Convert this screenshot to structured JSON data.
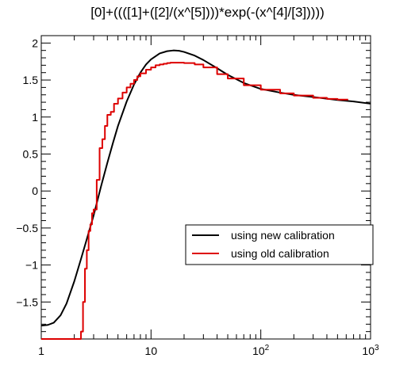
{
  "chart_data": {
    "type": "line",
    "title": "[0]+((([1]+([2]/(x^[5])))*exp(-(x^[4]/[3]))))",
    "xlabel": "",
    "ylabel": "",
    "xscale": "log",
    "xlim": [
      1,
      1000
    ],
    "ylim": [
      -2,
      2.1
    ],
    "grid": false,
    "legend_position": "lower-right",
    "x_ticks": [
      {
        "value": 1,
        "label": "1"
      },
      {
        "value": 10,
        "label": "10"
      },
      {
        "value": 100,
        "label": "10",
        "sup": "2"
      },
      {
        "value": 1000,
        "label": "10",
        "sup": "3"
      }
    ],
    "y_ticks": [
      {
        "value": -1.5,
        "label": "−1.5"
      },
      {
        "value": -1,
        "label": "−1"
      },
      {
        "value": -0.5,
        "label": "−0.5"
      },
      {
        "value": 0,
        "label": "0"
      },
      {
        "value": 0.5,
        "label": "0.5"
      },
      {
        "value": 1,
        "label": "1"
      },
      {
        "value": 1.5,
        "label": "1.5"
      },
      {
        "value": 2,
        "label": "2"
      }
    ],
    "series": [
      {
        "name": "using new calibration",
        "color": "#000000",
        "style": "smooth",
        "x": [
          1,
          1.15,
          1.3,
          1.5,
          1.7,
          2.0,
          2.3,
          2.6,
          3.0,
          3.5,
          4.0,
          4.5,
          5.0,
          6.0,
          7.0,
          8.0,
          9.0,
          10,
          12,
          14,
          16,
          18,
          20,
          25,
          30,
          40,
          50,
          70,
          100,
          150,
          200,
          300,
          500,
          700,
          1000
        ],
        "y": [
          -1.82,
          -1.81,
          -1.78,
          -1.68,
          -1.52,
          -1.22,
          -0.92,
          -0.65,
          -0.33,
          0.06,
          0.38,
          0.65,
          0.88,
          1.21,
          1.44,
          1.6,
          1.71,
          1.78,
          1.86,
          1.89,
          1.9,
          1.895,
          1.88,
          1.83,
          1.77,
          1.66,
          1.57,
          1.46,
          1.38,
          1.33,
          1.3,
          1.27,
          1.23,
          1.21,
          1.18
        ]
      },
      {
        "name": "using old calibration",
        "color": "#dd0000",
        "style": "step",
        "x": [
          1,
          1.1,
          1.2,
          1.3,
          1.4,
          1.5,
          1.6,
          1.7,
          1.8,
          1.9,
          2.0,
          2.1,
          2.2,
          2.3,
          2.4,
          2.5,
          2.6,
          2.7,
          2.8,
          2.9,
          3.0,
          3.2,
          3.4,
          3.6,
          3.8,
          4.0,
          4.3,
          4.6,
          5.0,
          5.5,
          6.0,
          6.5,
          7.0,
          7.5,
          8.0,
          9.0,
          10,
          11,
          12,
          13,
          14,
          15,
          17,
          20,
          25,
          30,
          40,
          50,
          70,
          100,
          150,
          200,
          300,
          400,
          500
        ],
        "y": [
          -2,
          -2,
          -2,
          -2,
          -2,
          -2,
          -2,
          -2,
          -2,
          -2,
          -2,
          -2,
          -2,
          -1.9,
          -1.5,
          -1.05,
          -0.8,
          -0.54,
          -0.45,
          -0.3,
          -0.25,
          0.15,
          0.58,
          0.7,
          0.88,
          1.03,
          1.07,
          1.18,
          1.25,
          1.33,
          1.4,
          1.45,
          1.5,
          1.55,
          1.59,
          1.64,
          1.67,
          1.7,
          1.71,
          1.72,
          1.73,
          1.735,
          1.735,
          1.73,
          1.71,
          1.67,
          1.58,
          1.52,
          1.43,
          1.37,
          1.32,
          1.29,
          1.26,
          1.245,
          1.235
        ]
      }
    ]
  }
}
